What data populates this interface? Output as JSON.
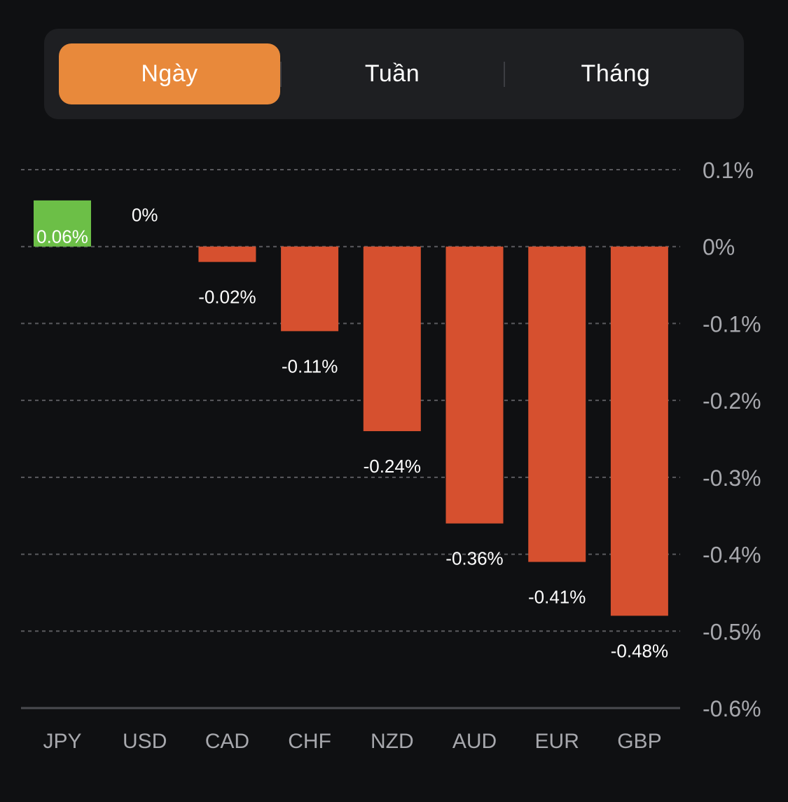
{
  "tabs": [
    {
      "label": "Ngày",
      "active": true
    },
    {
      "label": "Tuần",
      "active": false
    },
    {
      "label": "Tháng",
      "active": false
    }
  ],
  "colors": {
    "positive": "#6cbf47",
    "negative": "#d6502f",
    "active_tab": "#e8893b",
    "grid": "#5a5a5e",
    "axis_text": "#a7a8ad",
    "value_text": "#ffffff"
  },
  "chart_data": {
    "type": "bar",
    "categories": [
      "JPY",
      "USD",
      "CAD",
      "CHF",
      "NZD",
      "AUD",
      "EUR",
      "GBP"
    ],
    "values": [
      0.06,
      0,
      -0.02,
      -0.11,
      -0.24,
      -0.36,
      -0.41,
      -0.48
    ],
    "value_labels": [
      "0.06%",
      "0%",
      "-0.02%",
      "-0.11%",
      "-0.24%",
      "-0.36%",
      "-0.41%",
      "-0.48%"
    ],
    "ylim": [
      -0.6,
      0.1
    ],
    "y_ticks": [
      0.1,
      0,
      -0.1,
      -0.2,
      -0.3,
      -0.4,
      -0.5,
      -0.6
    ],
    "y_tick_labels": [
      "0.1%",
      "0%",
      "-0.1%",
      "-0.2%",
      "-0.3%",
      "-0.4%",
      "-0.5%",
      "-0.6%"
    ],
    "y_axis_position": "right",
    "grid": true
  }
}
